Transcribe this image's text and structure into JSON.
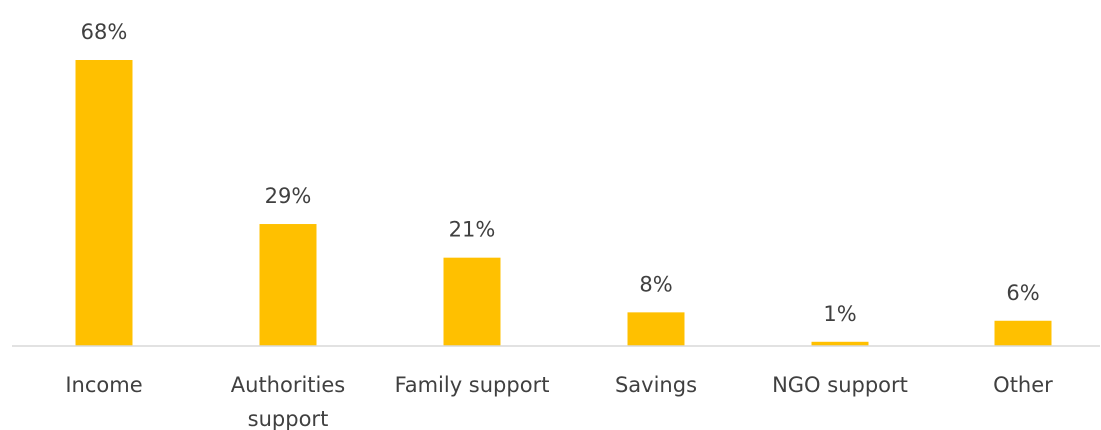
{
  "chart_data": {
    "type": "bar",
    "title": "",
    "xlabel": "",
    "ylabel": "",
    "categories": [
      "Income",
      "Authorities support",
      "Family support",
      "Savings",
      "NGO support",
      "Other"
    ],
    "category_lines": [
      [
        "Income"
      ],
      [
        "Authorities",
        "support"
      ],
      [
        "Family support"
      ],
      [
        "Savings"
      ],
      [
        "NGO support"
      ],
      [
        "Other"
      ]
    ],
    "values": [
      68,
      29,
      21,
      8,
      1,
      6
    ],
    "data_labels": [
      "68%",
      "29%",
      "21%",
      "8%",
      "1%",
      "6%"
    ],
    "unit": "%",
    "ylim": [
      0,
      68
    ],
    "grid": false,
    "legend": "none",
    "colors": {
      "bar": "#FFC000",
      "axis": "#D9D9D9",
      "text": "#404040"
    }
  }
}
